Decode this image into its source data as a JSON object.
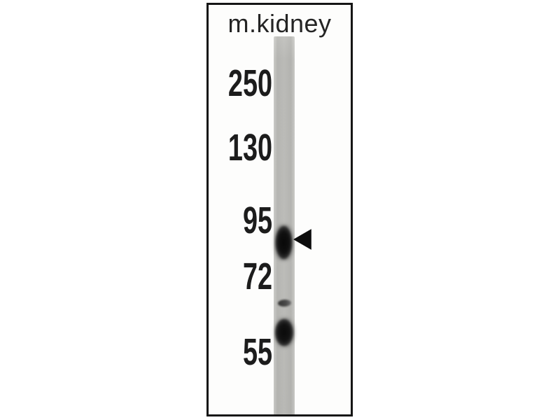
{
  "figure": {
    "title": "m.kidney",
    "type": "western blot",
    "marker_labels": [
      "250",
      "130",
      "95",
      "72",
      "55"
    ],
    "marker_units": "kDa",
    "bands": [
      {
        "name": "main-band",
        "approx_kda": 87,
        "intensity": "strong",
        "annotated_by_arrow": true
      },
      {
        "name": "faint-band",
        "approx_kda": 64,
        "intensity": "faint",
        "annotated_by_arrow": false
      },
      {
        "name": "lower-band",
        "approx_kda": 58,
        "intensity": "strong",
        "annotated_by_arrow": false
      }
    ],
    "annotation": {
      "shape": "arrowhead",
      "direction": "left",
      "points_to": "main-band"
    }
  },
  "colors": {
    "background": "#ffffff",
    "panel_border": "#151515",
    "lane_gray": "#d9d9d7",
    "band_black": "#0c0c0c",
    "text": "#1c1c1c"
  }
}
